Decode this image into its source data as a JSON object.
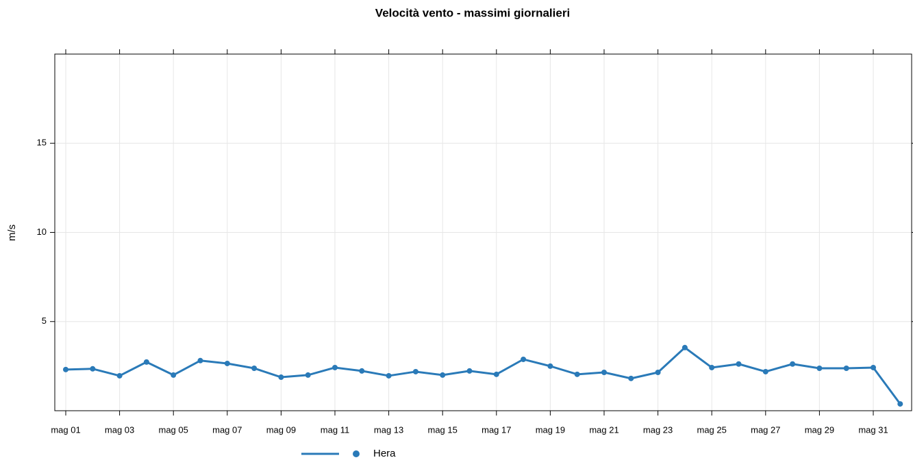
{
  "chart_data": {
    "type": "line",
    "title": "Velocità vento - massimi giornalieri",
    "ylabel": "m/s",
    "categories": [
      "mag 01",
      null,
      "mag 03",
      null,
      "mag 05",
      null,
      "mag 07",
      null,
      "mag 09",
      null,
      "mag 11",
      null,
      "mag 13",
      null,
      "mag 15",
      null,
      "mag 17",
      null,
      "mag 19",
      null,
      "mag 21",
      null,
      "mag 23",
      null,
      "mag 25",
      null,
      "mag 27",
      null,
      "mag 29",
      null,
      "mag 31",
      null
    ],
    "series": [
      {
        "name": "Hera",
        "color": "#2a7ab8",
        "values": [
          2.31,
          2.35,
          1.96,
          2.73,
          2.0,
          2.81,
          2.65,
          2.38,
          1.88,
          2.0,
          2.42,
          2.23,
          1.96,
          2.19,
          2.0,
          2.23,
          2.04,
          2.88,
          2.5,
          2.04,
          2.15,
          1.81,
          2.15,
          3.54,
          2.42,
          2.62,
          2.19,
          2.62,
          2.38,
          2.38,
          2.42,
          0.38
        ]
      }
    ],
    "ylim": [
      0,
      20
    ],
    "yticks": [
      5,
      10,
      15
    ],
    "grid": true,
    "legend": "bottom"
  }
}
